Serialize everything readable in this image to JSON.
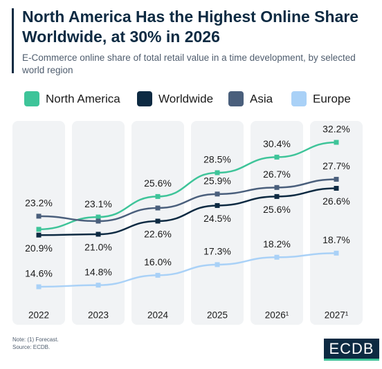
{
  "chart_data": {
    "type": "line",
    "title": "North America Has the Highest Online Share Worldwide, at 30% in 2026",
    "subtitle": "E-Commerce online share of total retail value in a time development, by selected world region",
    "categories": [
      "2022",
      "2023",
      "2024",
      "2025",
      "2026¹",
      "2027¹"
    ],
    "series": [
      {
        "name": "North America",
        "color": "#3ec499",
        "values": [
          21.6,
          23.1,
          25.6,
          28.5,
          30.4,
          32.2
        ],
        "value_labels": [
          null,
          "23.1%",
          "25.6%",
          "28.5%",
          "30.4%",
          "32.2%"
        ]
      },
      {
        "name": "Worldwide",
        "color": "#0d2a42",
        "values": [
          20.9,
          21.0,
          22.6,
          24.5,
          25.6,
          26.6
        ],
        "value_labels": [
          "20.9%",
          "21.0%",
          "22.6%",
          "24.5%",
          "25.6%",
          "26.6%"
        ]
      },
      {
        "name": "Asia",
        "color": "#4a5f7c",
        "values": [
          23.2,
          22.6,
          24.2,
          25.9,
          26.7,
          27.7
        ],
        "value_labels": [
          "23.2%",
          null,
          null,
          "25.9%",
          "26.7%",
          "27.7%"
        ]
      },
      {
        "name": "Europe",
        "color": "#a9d1f7",
        "values": [
          14.6,
          14.8,
          16.0,
          17.3,
          18.2,
          18.7
        ],
        "value_labels": [
          "14.6%",
          "14.8%",
          "16.0%",
          "17.3%",
          "18.2%",
          "18.7%"
        ]
      }
    ],
    "notes": [
      "Note: (1) Forecast.",
      "Source: ECDB."
    ],
    "logo": "ECDB"
  }
}
